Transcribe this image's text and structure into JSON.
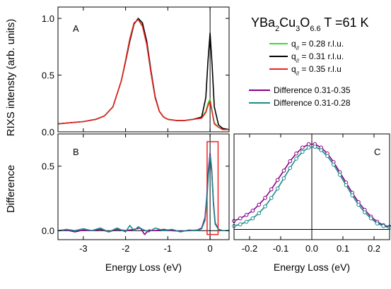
{
  "figure": {
    "title_parts": [
      "YBa",
      "2",
      "Cu",
      "3",
      "O",
      "6.6",
      " T =61 K"
    ],
    "ylabel_top": "RIXS intensty (arb. units)",
    "ylabel_bottom": "Difference",
    "xlabel": "Energy Loss (eV)",
    "xlabel_right": "Energy Loss (eV)"
  },
  "legend": {
    "items": [
      {
        "prefix": "q",
        "sub": "//",
        "text": " = 0.28 r.l.u.",
        "color": "#33dd33"
      },
      {
        "prefix": "q",
        "sub": "//",
        "text": " = 0.31 r.l.u.",
        "color": "#000000"
      },
      {
        "prefix": "q",
        "sub": "//",
        "text": " = 0.35 r.l.u",
        "color": "#ee2222"
      },
      {
        "text": "Difference 0.31-0.35",
        "color": "#880088"
      },
      {
        "text": "Difference 0.31-0.28",
        "color": "#1a8a88"
      }
    ]
  },
  "chart_data": [
    {
      "type": "line",
      "panel": "A",
      "xlim": [
        -3.6,
        0.45
      ],
      "ylim": [
        0,
        1.1
      ],
      "xticks": [
        -3,
        -2,
        -1,
        0
      ],
      "yticks": [
        0.0,
        0.5,
        1.0
      ],
      "ytick_labels": [
        "0.0",
        "0.5",
        "1.0"
      ],
      "vline_x": 0,
      "series": [
        {
          "name": "q// = 0.28 r.l.u.",
          "color": "#33dd33",
          "x": [
            -3.6,
            -3.3,
            -3.0,
            -2.7,
            -2.5,
            -2.3,
            -2.1,
            -2.0,
            -1.9,
            -1.8,
            -1.7,
            -1.6,
            -1.5,
            -1.4,
            -1.3,
            -1.2,
            -1.1,
            -1.0,
            -0.8,
            -0.6,
            -0.4,
            -0.2,
            -0.1,
            -0.05,
            0.0,
            0.05,
            0.1,
            0.2,
            0.3,
            0.45
          ],
          "y": [
            0.07,
            0.08,
            0.09,
            0.11,
            0.14,
            0.22,
            0.45,
            0.63,
            0.82,
            0.96,
            0.99,
            0.94,
            0.78,
            0.52,
            0.3,
            0.18,
            0.13,
            0.11,
            0.1,
            0.1,
            0.11,
            0.13,
            0.18,
            0.25,
            0.29,
            0.18,
            0.08,
            0.04,
            0.02,
            0.02
          ]
        },
        {
          "name": "q// = 0.31 r.l.u.",
          "color": "#000000",
          "x": [
            -3.6,
            -3.3,
            -3.0,
            -2.7,
            -2.5,
            -2.3,
            -2.1,
            -2.0,
            -1.9,
            -1.8,
            -1.7,
            -1.6,
            -1.5,
            -1.4,
            -1.3,
            -1.2,
            -1.1,
            -1.0,
            -0.8,
            -0.6,
            -0.4,
            -0.2,
            -0.1,
            -0.05,
            0.0,
            0.05,
            0.1,
            0.2,
            0.3,
            0.45
          ],
          "y": [
            0.07,
            0.08,
            0.09,
            0.11,
            0.14,
            0.22,
            0.45,
            0.62,
            0.8,
            0.95,
            1.0,
            0.96,
            0.8,
            0.54,
            0.31,
            0.18,
            0.13,
            0.11,
            0.1,
            0.1,
            0.11,
            0.13,
            0.3,
            0.62,
            0.87,
            0.58,
            0.22,
            0.06,
            0.03,
            0.02
          ]
        },
        {
          "name": "q// = 0.35 r.l.u",
          "color": "#ee2222",
          "x": [
            -3.6,
            -3.3,
            -3.0,
            -2.7,
            -2.5,
            -2.3,
            -2.1,
            -2.0,
            -1.9,
            -1.8,
            -1.7,
            -1.6,
            -1.5,
            -1.4,
            -1.3,
            -1.2,
            -1.1,
            -1.0,
            -0.8,
            -0.6,
            -0.4,
            -0.2,
            -0.1,
            -0.05,
            0.0,
            0.05,
            0.1,
            0.2,
            0.3,
            0.45
          ],
          "y": [
            0.07,
            0.08,
            0.09,
            0.11,
            0.14,
            0.22,
            0.45,
            0.63,
            0.82,
            0.96,
            0.99,
            0.93,
            0.77,
            0.52,
            0.3,
            0.18,
            0.13,
            0.11,
            0.1,
            0.1,
            0.11,
            0.12,
            0.17,
            0.23,
            0.27,
            0.17,
            0.07,
            0.04,
            0.02,
            0.02
          ]
        }
      ]
    },
    {
      "type": "line",
      "panel": "B",
      "xlim": [
        -3.6,
        0.45
      ],
      "ylim": [
        -0.07,
        0.75
      ],
      "xticks": [
        -3,
        -2,
        -1,
        0
      ],
      "xtick_labels": [
        "-3",
        "-2",
        "-1",
        "0"
      ],
      "yticks": [
        0.0,
        0.5
      ],
      "ytick_labels": [
        "0.0",
        "0.5"
      ],
      "hline_y": 0,
      "vline_x": 0,
      "zoom_box": {
        "x": [
          -0.07,
          0.19
        ],
        "y": [
          -0.03,
          0.69
        ]
      },
      "series": [
        {
          "name": "Difference 0.31-0.35",
          "color": "#880088",
          "x": [
            -3.6,
            -3.4,
            -3.2,
            -3.0,
            -2.8,
            -2.6,
            -2.4,
            -2.2,
            -2.0,
            -1.8,
            -1.65,
            -1.55,
            -1.45,
            -1.3,
            -1.1,
            -0.9,
            -0.7,
            -0.5,
            -0.3,
            -0.2,
            -0.12,
            -0.08,
            -0.04,
            0.0,
            0.04,
            0.08,
            0.12,
            0.2,
            0.3,
            0.45
          ],
          "y": [
            0.0,
            0.005,
            -0.01,
            0.005,
            0.0,
            0.01,
            -0.01,
            0.01,
            0.0,
            0.01,
            0.02,
            -0.03,
            0.005,
            0.0,
            0.01,
            0.0,
            -0.005,
            0.0,
            0.005,
            0.02,
            0.1,
            0.25,
            0.47,
            0.6,
            0.47,
            0.22,
            0.06,
            0.01,
            0.0,
            0.0
          ]
        },
        {
          "name": "Difference 0.31-0.28",
          "color": "#1a8a88",
          "x": [
            -3.6,
            -3.4,
            -3.2,
            -3.0,
            -2.8,
            -2.6,
            -2.4,
            -2.2,
            -2.0,
            -1.9,
            -1.8,
            -1.7,
            -1.6,
            -1.45,
            -1.3,
            -1.1,
            -0.9,
            -0.7,
            -0.5,
            -0.3,
            -0.2,
            -0.12,
            -0.08,
            -0.04,
            0.0,
            0.04,
            0.08,
            0.12,
            0.2,
            0.3,
            0.45
          ],
          "y": [
            0.0,
            0.01,
            0.0,
            0.015,
            0.0,
            0.02,
            -0.01,
            0.02,
            -0.01,
            0.04,
            0.0,
            0.03,
            0.01,
            -0.01,
            0.02,
            0.0,
            0.01,
            -0.01,
            0.005,
            0.0,
            0.015,
            0.08,
            0.22,
            0.43,
            0.58,
            0.45,
            0.2,
            0.05,
            0.01,
            0.0,
            0.0
          ]
        }
      ]
    },
    {
      "type": "line",
      "panel": "C",
      "xlim": [
        -0.25,
        0.25
      ],
      "ylim": [
        -0.12,
        1.12
      ],
      "xticks": [
        -0.2,
        -0.1,
        0.0,
        0.1,
        0.2
      ],
      "xtick_labels": [
        "-0.2",
        "-0.1",
        "0.0",
        "0.1",
        "0.2"
      ],
      "hline_y": 0,
      "vline_x": 0,
      "series": [
        {
          "name": "Difference 0.31-0.35",
          "color": "#880088",
          "marker": "circle",
          "x": [
            -0.25,
            -0.23,
            -0.21,
            -0.19,
            -0.17,
            -0.15,
            -0.13,
            -0.11,
            -0.09,
            -0.07,
            -0.05,
            -0.03,
            -0.01,
            0.01,
            0.03,
            0.05,
            0.07,
            0.09,
            0.11,
            0.13,
            0.15,
            0.17,
            0.19,
            0.21,
            0.23,
            0.25
          ],
          "y": [
            0.1,
            0.13,
            0.17,
            0.22,
            0.29,
            0.37,
            0.47,
            0.58,
            0.69,
            0.8,
            0.89,
            0.96,
            1.0,
            1.0,
            0.96,
            0.89,
            0.79,
            0.67,
            0.55,
            0.43,
            0.32,
            0.23,
            0.15,
            0.09,
            0.05,
            0.03
          ]
        },
        {
          "name": "Difference 0.31-0.28",
          "color": "#1a8a88",
          "marker": "circle",
          "x": [
            -0.25,
            -0.23,
            -0.21,
            -0.19,
            -0.17,
            -0.15,
            -0.13,
            -0.11,
            -0.09,
            -0.07,
            -0.05,
            -0.03,
            -0.01,
            0.01,
            0.03,
            0.05,
            0.07,
            0.09,
            0.11,
            0.13,
            0.15,
            0.17,
            0.19,
            0.21,
            0.23,
            0.25
          ],
          "y": [
            0.04,
            0.06,
            0.09,
            0.13,
            0.19,
            0.27,
            0.37,
            0.48,
            0.6,
            0.72,
            0.83,
            0.91,
            0.96,
            0.97,
            0.93,
            0.86,
            0.76,
            0.64,
            0.52,
            0.4,
            0.29,
            0.2,
            0.13,
            0.07,
            0.04,
            0.02
          ]
        }
      ]
    }
  ]
}
